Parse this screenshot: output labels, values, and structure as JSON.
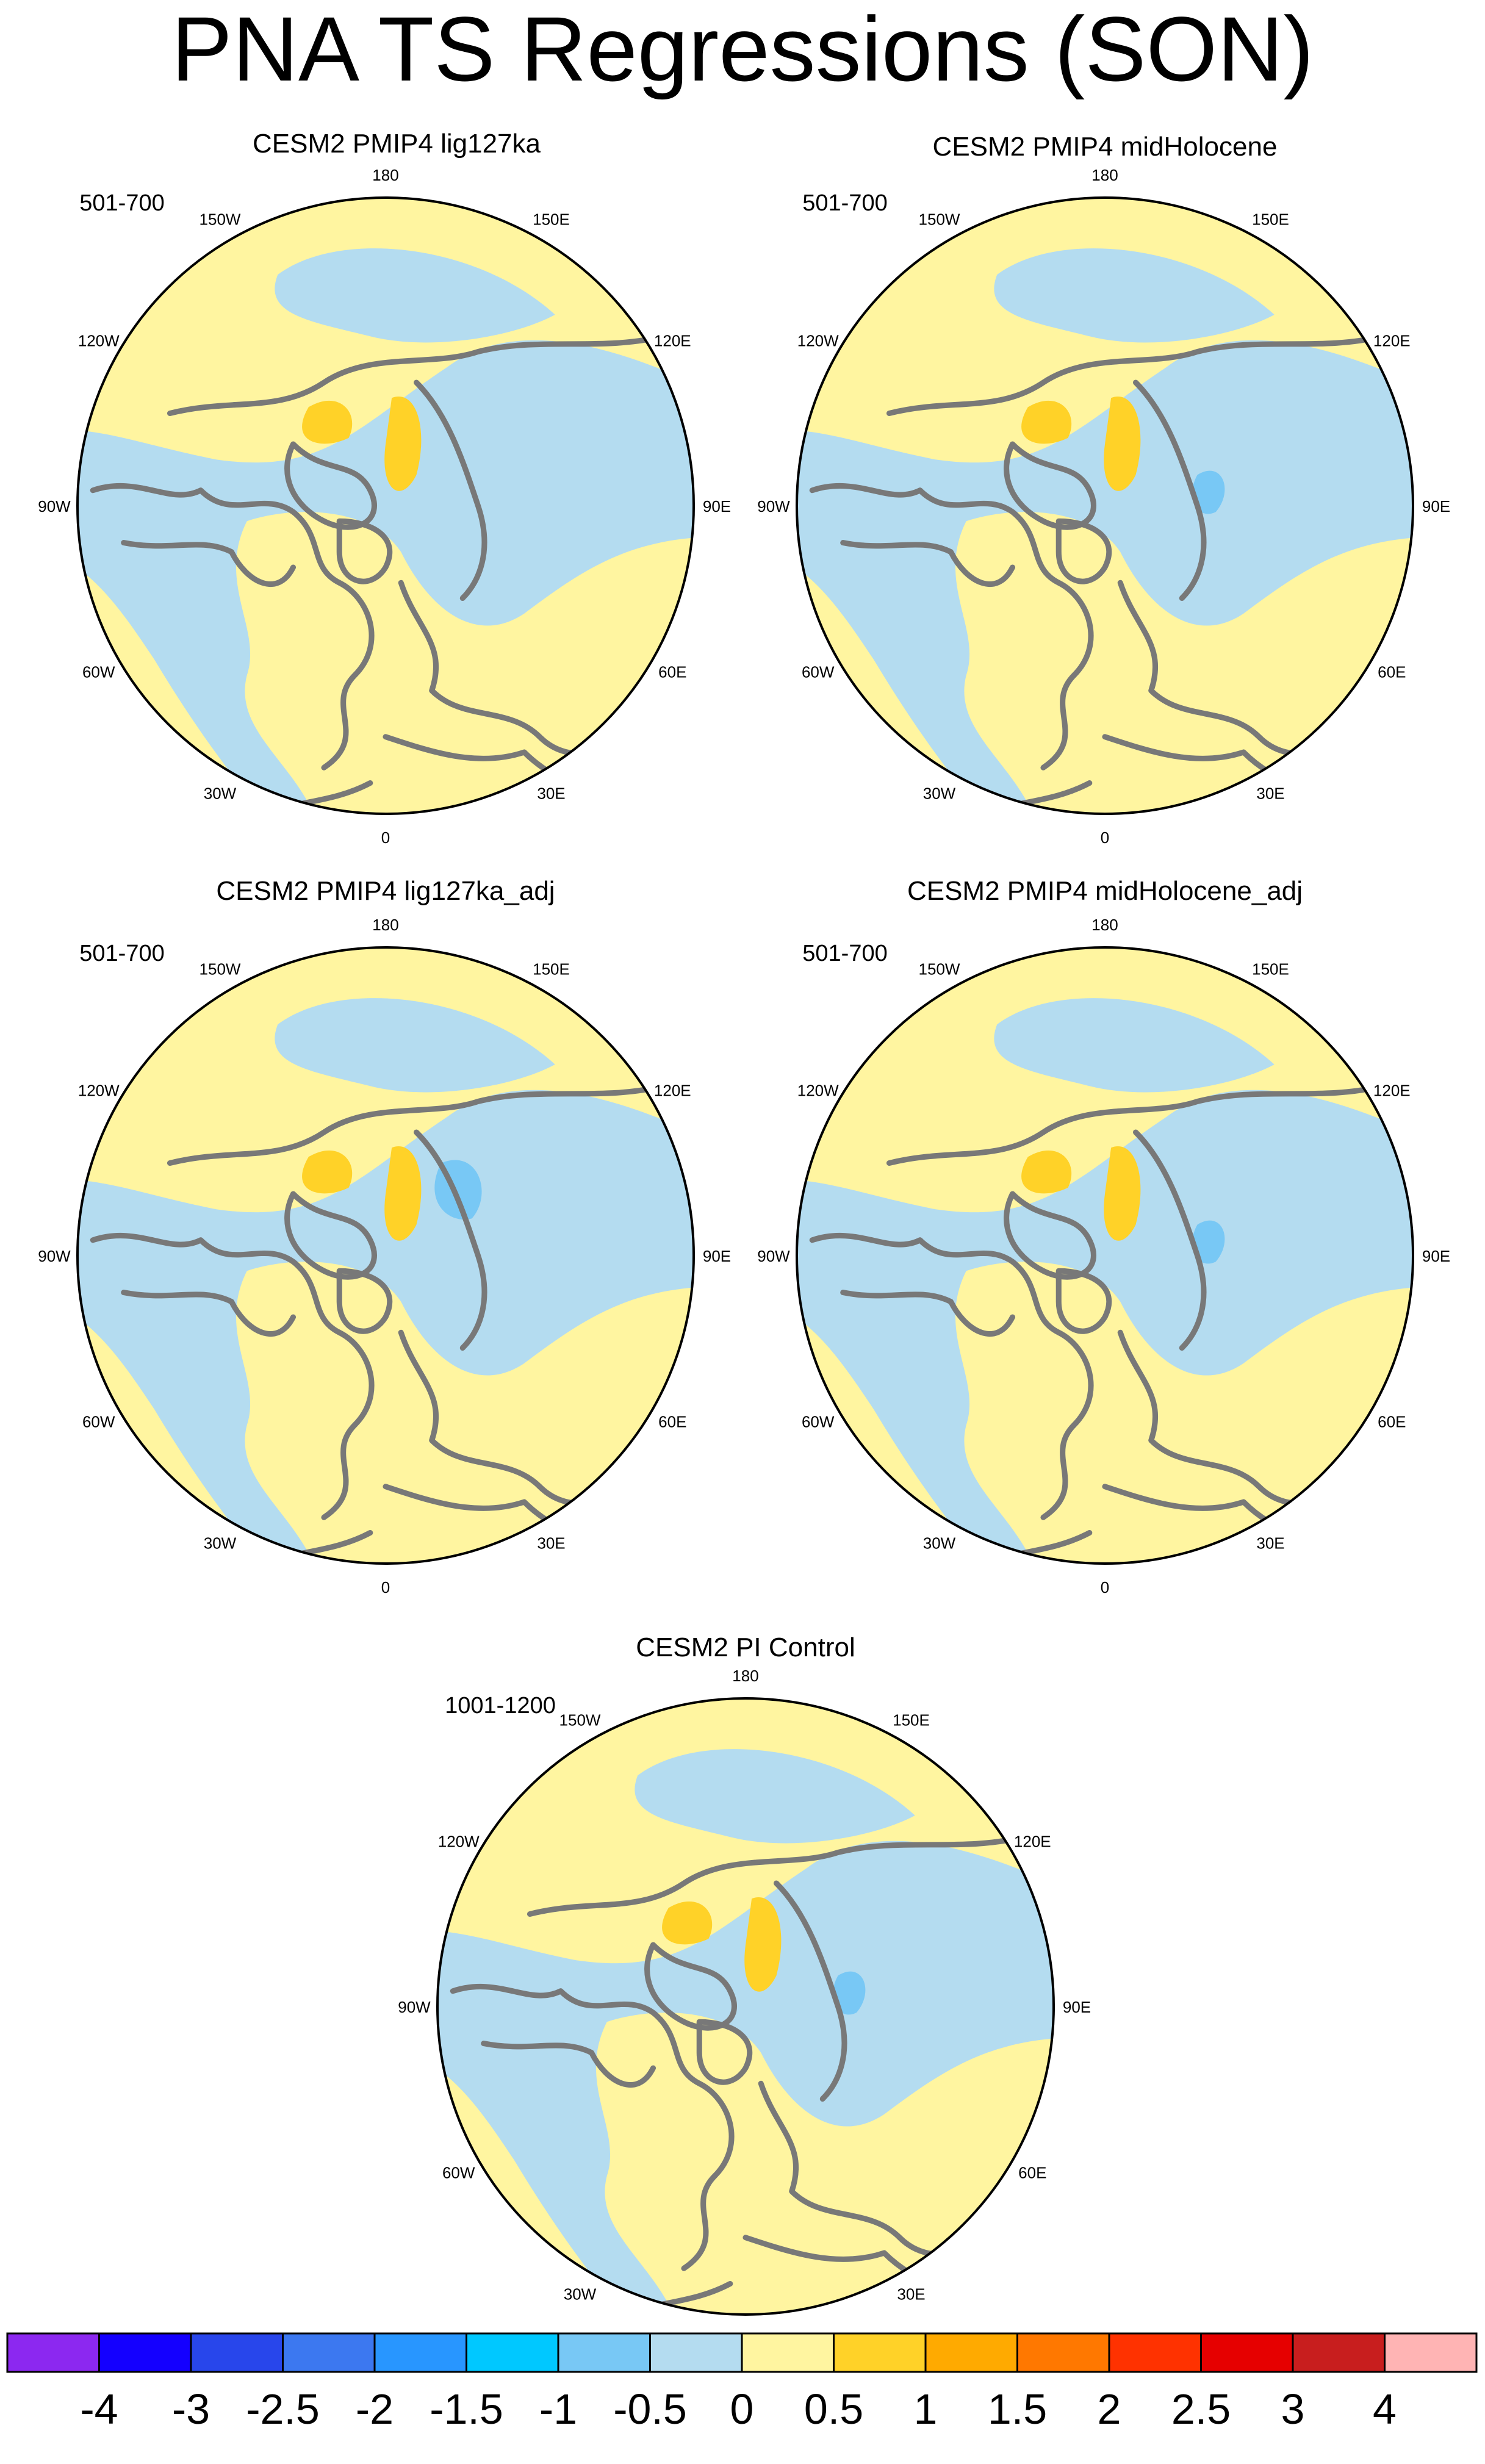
{
  "title": "PNA TS Regressions (SON)",
  "colors": {
    "ocean_light_blue": "#b4dcf0",
    "mid_blue": "#78c8f5",
    "light_yellow": "#fff5a0",
    "gold": "#ffd228",
    "coastline_gray": "#787878"
  },
  "longitude_labels": [
    "180",
    "150E",
    "120E",
    "90E",
    "60E",
    "30E",
    "0",
    "30W",
    "60W",
    "90W",
    "120W",
    "150W"
  ],
  "panels": [
    {
      "title": "CESM2 PMIP4 lig127ka",
      "years": "501-700"
    },
    {
      "title": "CESM2 PMIP4 midHolocene",
      "years": "501-700"
    },
    {
      "title": "CESM2 PMIP4 lig127ka_adj",
      "years": "501-700"
    },
    {
      "title": "CESM2 PMIP4 midHolocene_adj",
      "years": "501-700"
    },
    {
      "title": "CESM2 PI Control",
      "years": "1001-1200"
    }
  ],
  "colorbar": {
    "labels": [
      "-4",
      "-3",
      "-2.5",
      "-2",
      "-1.5",
      "-1",
      "-0.5",
      "0",
      "0.5",
      "1",
      "1.5",
      "2",
      "2.5",
      "3",
      "4"
    ],
    "colors": [
      "#8c28f0",
      "#1400ff",
      "#2846eb",
      "#3c78f0",
      "#2896ff",
      "#00c8ff",
      "#78c8f5",
      "#b4dcf0",
      "#fff5a0",
      "#ffd228",
      "#ffaa00",
      "#ff7800",
      "#ff3200",
      "#e60000",
      "#c81e1e",
      "#ffb4b4"
    ]
  }
}
